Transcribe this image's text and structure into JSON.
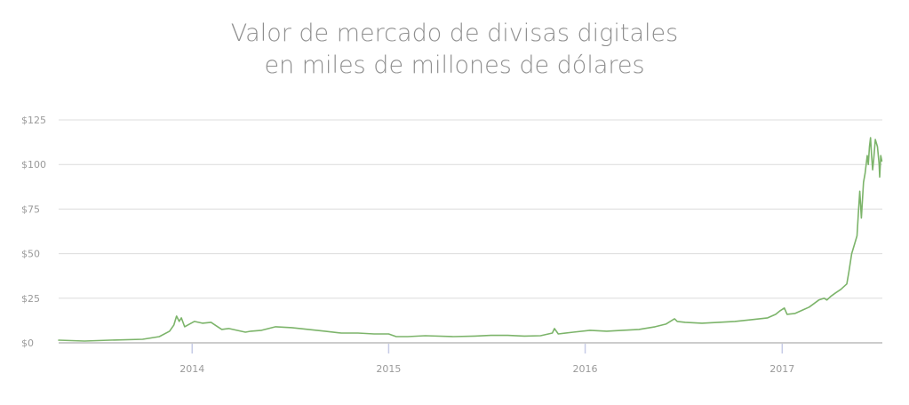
{
  "chart_data": {
    "type": "line",
    "title": "Valor de mercado de divisas digitales",
    "subtitle": "en miles de millones de dólares",
    "xlabel": "",
    "ylabel": "",
    "ylim": [
      0,
      125
    ],
    "xlim": [
      "2013-04-28",
      "2017-07-06"
    ],
    "grid": true,
    "y_ticks": [
      {
        "value": 125,
        "label": "$125"
      },
      {
        "value": 100,
        "label": "$100"
      },
      {
        "value": 75,
        "label": "$75"
      },
      {
        "value": 50,
        "label": "$50"
      },
      {
        "value": 25,
        "label": "$25"
      },
      {
        "value": 0,
        "label": "$0"
      }
    ],
    "x_ticks": [
      {
        "value": "2014-01-01",
        "label": "2014"
      },
      {
        "value": "2015-01-01",
        "label": "2015"
      },
      {
        "value": "2016-01-01",
        "label": "2016"
      },
      {
        "value": "2017-01-01",
        "label": "2017"
      }
    ],
    "colors": {
      "line": "#7cb46a",
      "grid": "#dcdcdc",
      "axis": "#9a9a9a",
      "tick_mark": "#c6cbe6",
      "text": "#8f8f8f"
    },
    "series": [
      {
        "x": [
          "2013-04-28",
          "2013-06-15",
          "2013-08-01",
          "2013-10-01",
          "2013-11-01",
          "2013-11-20",
          "2013-11-28",
          "2013-12-03",
          "2013-12-08",
          "2013-12-12",
          "2013-12-18",
          "2013-12-24",
          "2014-01-05",
          "2014-01-20",
          "2014-02-05",
          "2014-02-15",
          "2014-02-25",
          "2014-03-10",
          "2014-04-10",
          "2014-04-20",
          "2014-05-10",
          "2014-06-05",
          "2014-07-05",
          "2014-08-05",
          "2014-09-05",
          "2014-10-05",
          "2014-11-05",
          "2014-12-05",
          "2015-01-01",
          "2015-01-15",
          "2015-02-05",
          "2015-03-10",
          "2015-05-01",
          "2015-06-10",
          "2015-07-10",
          "2015-08-10",
          "2015-09-10",
          "2015-10-10",
          "2015-11-01",
          "2015-11-05",
          "2015-11-12",
          "2015-12-10",
          "2016-01-10",
          "2016-02-10",
          "2016-03-10",
          "2016-04-10",
          "2016-05-10",
          "2016-05-30",
          "2016-06-15",
          "2016-06-20",
          "2016-07-05",
          "2016-08-05",
          "2016-09-05",
          "2016-10-05",
          "2016-11-05",
          "2016-12-05",
          "2016-12-20",
          "2016-12-28",
          "2017-01-05",
          "2017-01-10",
          "2017-01-25",
          "2017-02-05",
          "2017-02-20",
          "2017-03-01",
          "2017-03-10",
          "2017-03-20",
          "2017-03-25",
          "2017-04-01",
          "2017-04-10",
          "2017-04-20",
          "2017-05-01",
          "2017-05-05",
          "2017-05-10",
          "2017-05-15",
          "2017-05-20",
          "2017-05-23",
          "2017-05-25",
          "2017-05-28",
          "2017-06-01",
          "2017-06-04",
          "2017-06-08",
          "2017-06-10",
          "2017-06-12",
          "2017-06-14",
          "2017-06-16",
          "2017-06-18",
          "2017-06-20",
          "2017-06-23",
          "2017-06-27",
          "2017-06-30",
          "2017-07-01",
          "2017-07-03",
          "2017-07-05"
        ],
        "values": [
          1.5,
          1.0,
          1.5,
          2.0,
          3.5,
          6.5,
          10.0,
          15.0,
          12.0,
          14.0,
          9.0,
          10.0,
          12.0,
          11.0,
          11.5,
          9.5,
          7.5,
          8.0,
          6.0,
          6.5,
          7.0,
          9.0,
          8.5,
          7.5,
          6.5,
          5.5,
          5.5,
          5.0,
          5.0,
          3.5,
          3.5,
          4.0,
          3.5,
          3.8,
          4.2,
          4.2,
          3.8,
          4.0,
          5.5,
          8.0,
          5.0,
          6.0,
          7.0,
          6.5,
          7.0,
          7.5,
          9.0,
          10.5,
          13.5,
          12.0,
          11.5,
          11.0,
          11.5,
          12.0,
          13.0,
          14.0,
          16.0,
          18.0,
          19.5,
          16.0,
          16.5,
          18.0,
          20.0,
          22.0,
          24.0,
          25.0,
          24.0,
          26.0,
          28.0,
          30.0,
          33.0,
          40.0,
          50.0,
          55.0,
          60.0,
          75.0,
          85.0,
          70.0,
          90.0,
          95.0,
          105.0,
          100.0,
          110.0,
          115.0,
          105.0,
          97.0,
          103.0,
          114.0,
          110.0,
          100.0,
          93.0,
          105.0,
          102.0
        ]
      }
    ]
  }
}
